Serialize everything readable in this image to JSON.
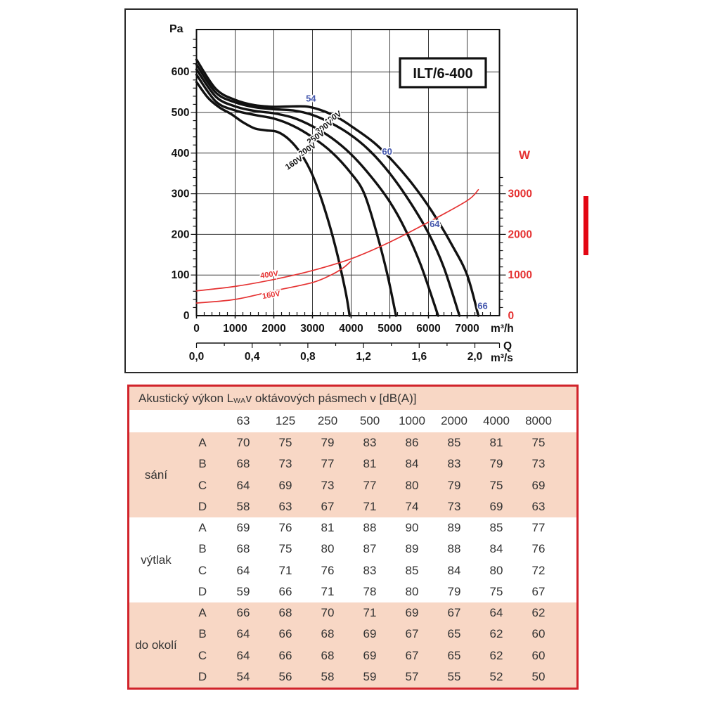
{
  "chart": {
    "model_label": "ILT/6-400",
    "y_left_unit": "Pa",
    "y_right_unit": "W",
    "x_unit_primary": "m³/h",
    "x_q_label": "Q",
    "x_unit_secondary": "m³/s",
    "colors": {
      "fan_curve": "#111111",
      "power_curve": "#e53232",
      "noise_label": "#4457ad",
      "right_axis": "#e53232",
      "grid": "#3c3c3c"
    }
  },
  "chart_data": {
    "type": "line",
    "title": "ILT/6-400",
    "x_axis": {
      "label": "Q",
      "unit_primary": "m³/h",
      "ticks_primary": [
        0,
        1000,
        2000,
        3000,
        4000,
        5000,
        6000,
        7000
      ],
      "unit_secondary": "m³/s",
      "ticks_secondary": [
        "0,0",
        "0,4",
        "0,8",
        "1,2",
        "1,6",
        "2,0"
      ],
      "range_primary": [
        0,
        7840
      ]
    },
    "y_axis_left": {
      "label": "Pa",
      "ticks": [
        0,
        100,
        200,
        300,
        400,
        500,
        600
      ],
      "range": [
        0,
        704
      ]
    },
    "y_axis_right": {
      "label": "W",
      "ticks": [
        0,
        1000,
        2000,
        3000
      ],
      "range": [
        0,
        7040
      ],
      "color": "#e53232"
    },
    "grid": true,
    "series": [
      {
        "name": "400V",
        "kind": "fan-pressure",
        "axis": "left",
        "color": "#111111",
        "points": [
          [
            0,
            630
          ],
          [
            500,
            558
          ],
          [
            1000,
            531
          ],
          [
            1500,
            518
          ],
          [
            2000,
            514
          ],
          [
            2500,
            515
          ],
          [
            2900,
            514
          ],
          [
            3300,
            503
          ],
          [
            3700,
            485
          ],
          [
            4100,
            460
          ],
          [
            4600,
            425
          ],
          [
            5100,
            378
          ],
          [
            5600,
            322
          ],
          [
            6100,
            255
          ],
          [
            6600,
            175
          ],
          [
            7000,
            100
          ],
          [
            7290,
            0
          ]
        ]
      },
      {
        "name": "300V",
        "kind": "fan-pressure",
        "axis": "left",
        "color": "#111111",
        "points": [
          [
            0,
            618
          ],
          [
            500,
            549
          ],
          [
            1000,
            525
          ],
          [
            1500,
            513
          ],
          [
            2000,
            508
          ],
          [
            2500,
            505
          ],
          [
            3000,
            494
          ],
          [
            3500,
            473
          ],
          [
            4000,
            444
          ],
          [
            4500,
            404
          ],
          [
            5000,
            350
          ],
          [
            5500,
            283
          ],
          [
            6000,
            203
          ],
          [
            6400,
            118
          ],
          [
            6800,
            0
          ]
        ]
      },
      {
        "name": "250V",
        "kind": "fan-pressure",
        "axis": "left",
        "color": "#111111",
        "points": [
          [
            0,
            606
          ],
          [
            500,
            539
          ],
          [
            1000,
            515
          ],
          [
            1500,
            504
          ],
          [
            2000,
            498
          ],
          [
            2500,
            487
          ],
          [
            3000,
            466
          ],
          [
            3500,
            437
          ],
          [
            4000,
            397
          ],
          [
            4500,
            344
          ],
          [
            5000,
            280
          ],
          [
            5400,
            212
          ],
          [
            5800,
            125
          ],
          [
            6250,
            0
          ]
        ]
      },
      {
        "name": "200V",
        "kind": "fan-pressure",
        "axis": "left",
        "color": "#111111",
        "points": [
          [
            0,
            593
          ],
          [
            500,
            527
          ],
          [
            1000,
            505
          ],
          [
            1500,
            494
          ],
          [
            2000,
            485
          ],
          [
            2500,
            467
          ],
          [
            3000,
            439
          ],
          [
            3500,
            402
          ],
          [
            4000,
            350
          ],
          [
            4340,
            300
          ],
          [
            4670,
            200
          ],
          [
            4940,
            100
          ],
          [
            5160,
            0
          ]
        ]
      },
      {
        "name": "160V",
        "kind": "fan-pressure",
        "axis": "left",
        "color": "#111111",
        "points": [
          [
            0,
            575
          ],
          [
            300,
            536
          ],
          [
            600,
            512
          ],
          [
            900,
            496
          ],
          [
            1200,
            476
          ],
          [
            1500,
            461
          ],
          [
            1800,
            456
          ],
          [
            2100,
            452
          ],
          [
            2400,
            433
          ],
          [
            2700,
            399
          ],
          [
            3000,
            346
          ],
          [
            3300,
            267
          ],
          [
            3600,
            167
          ],
          [
            3850,
            62
          ],
          [
            3960,
            0
          ]
        ]
      },
      {
        "name": "400V power",
        "kind": "power",
        "axis": "right",
        "color": "#e53232",
        "points": [
          [
            0,
            610
          ],
          [
            1000,
            720
          ],
          [
            2000,
            890
          ],
          [
            3000,
            1110
          ],
          [
            4000,
            1400
          ],
          [
            5000,
            1810
          ],
          [
            6000,
            2300
          ],
          [
            7000,
            2830
          ],
          [
            7290,
            3100
          ]
        ]
      },
      {
        "name": "160V power",
        "kind": "power",
        "axis": "right",
        "color": "#e53232",
        "points": [
          [
            0,
            310
          ],
          [
            1000,
            400
          ],
          [
            2000,
            610
          ],
          [
            3000,
            815
          ],
          [
            3500,
            1010
          ],
          [
            3800,
            1180
          ],
          [
            3980,
            1330
          ]
        ]
      }
    ],
    "annotations": [
      {
        "text": "54",
        "x": 2960,
        "y": 534,
        "color": "blue",
        "rot": 0,
        "size": 13
      },
      {
        "text": "60",
        "x": 4930,
        "y": 403,
        "color": "blue",
        "rot": 0,
        "size": 13
      },
      {
        "text": "64",
        "x": 6160,
        "y": 225,
        "color": "blue",
        "rot": 0,
        "size": 13
      },
      {
        "text": "66",
        "x": 7400,
        "y": 23,
        "color": "blue",
        "rot": 0,
        "size": 13
      },
      {
        "text": "400V",
        "x": 3560,
        "y": 488,
        "color": "black",
        "rot": -33,
        "size": 11.5
      },
      {
        "text": "300V",
        "x": 3340,
        "y": 466,
        "color": "black",
        "rot": -33,
        "size": 11.5
      },
      {
        "text": "250V",
        "x": 3120,
        "y": 440,
        "color": "black",
        "rot": -33,
        "size": 11.5
      },
      {
        "text": "200V",
        "x": 2900,
        "y": 410,
        "color": "black",
        "rot": -33,
        "size": 11.5
      },
      {
        "text": "160V",
        "x": 2560,
        "y": 378,
        "color": "black",
        "rot": -33,
        "size": 11.5
      },
      {
        "text": "400V",
        "x": 1891,
        "y": 102,
        "color": "red",
        "rot": -8,
        "size": 11
      },
      {
        "text": "160V",
        "x": 1945,
        "y": 52,
        "color": "red",
        "rot": -10,
        "size": 11
      }
    ],
    "legend": "none"
  },
  "aside": {
    "red_bar_color": "#e30613"
  },
  "table": {
    "title_prefix": "Akustický výkon L",
    "title_sub": "WA",
    "title_suffix": " v oktávových pásmech v [dB(A)]",
    "frequency_headers": [
      "63",
      "125",
      "250",
      "500",
      "1000",
      "2000",
      "4000",
      "8000"
    ],
    "groups": [
      {
        "name": "sání",
        "tone": "pink",
        "rows": [
          {
            "label": "A",
            "values": [
              70,
              75,
              79,
              83,
              86,
              85,
              81,
              75
            ]
          },
          {
            "label": "B",
            "values": [
              68,
              73,
              77,
              81,
              84,
              83,
              79,
              73
            ]
          },
          {
            "label": "C",
            "values": [
              64,
              69,
              73,
              77,
              80,
              79,
              75,
              69
            ]
          },
          {
            "label": "D",
            "values": [
              58,
              63,
              67,
              71,
              74,
              73,
              69,
              63
            ]
          }
        ]
      },
      {
        "name": "výtlak",
        "tone": "white",
        "rows": [
          {
            "label": "A",
            "values": [
              69,
              76,
              81,
              88,
              90,
              89,
              85,
              77
            ]
          },
          {
            "label": "B",
            "values": [
              68,
              75,
              80,
              87,
              89,
              88,
              84,
              76
            ]
          },
          {
            "label": "C",
            "values": [
              64,
              71,
              76,
              83,
              85,
              84,
              80,
              72
            ]
          },
          {
            "label": "D",
            "values": [
              59,
              66,
              71,
              78,
              80,
              79,
              75,
              67
            ]
          }
        ]
      },
      {
        "name": "do okolí",
        "tone": "pink",
        "rows": [
          {
            "label": "A",
            "values": [
              66,
              68,
              70,
              71,
              69,
              67,
              64,
              62
            ]
          },
          {
            "label": "B",
            "values": [
              64,
              66,
              68,
              69,
              67,
              65,
              62,
              60
            ]
          },
          {
            "label": "C",
            "values": [
              64,
              66,
              68,
              69,
              67,
              65,
              62,
              60
            ]
          },
          {
            "label": "D",
            "values": [
              54,
              56,
              58,
              59,
              57,
              55,
              52,
              50
            ]
          }
        ]
      }
    ],
    "colors": {
      "pink": "#f8d7c5",
      "border": "#d1232b",
      "text": "#333333"
    }
  }
}
